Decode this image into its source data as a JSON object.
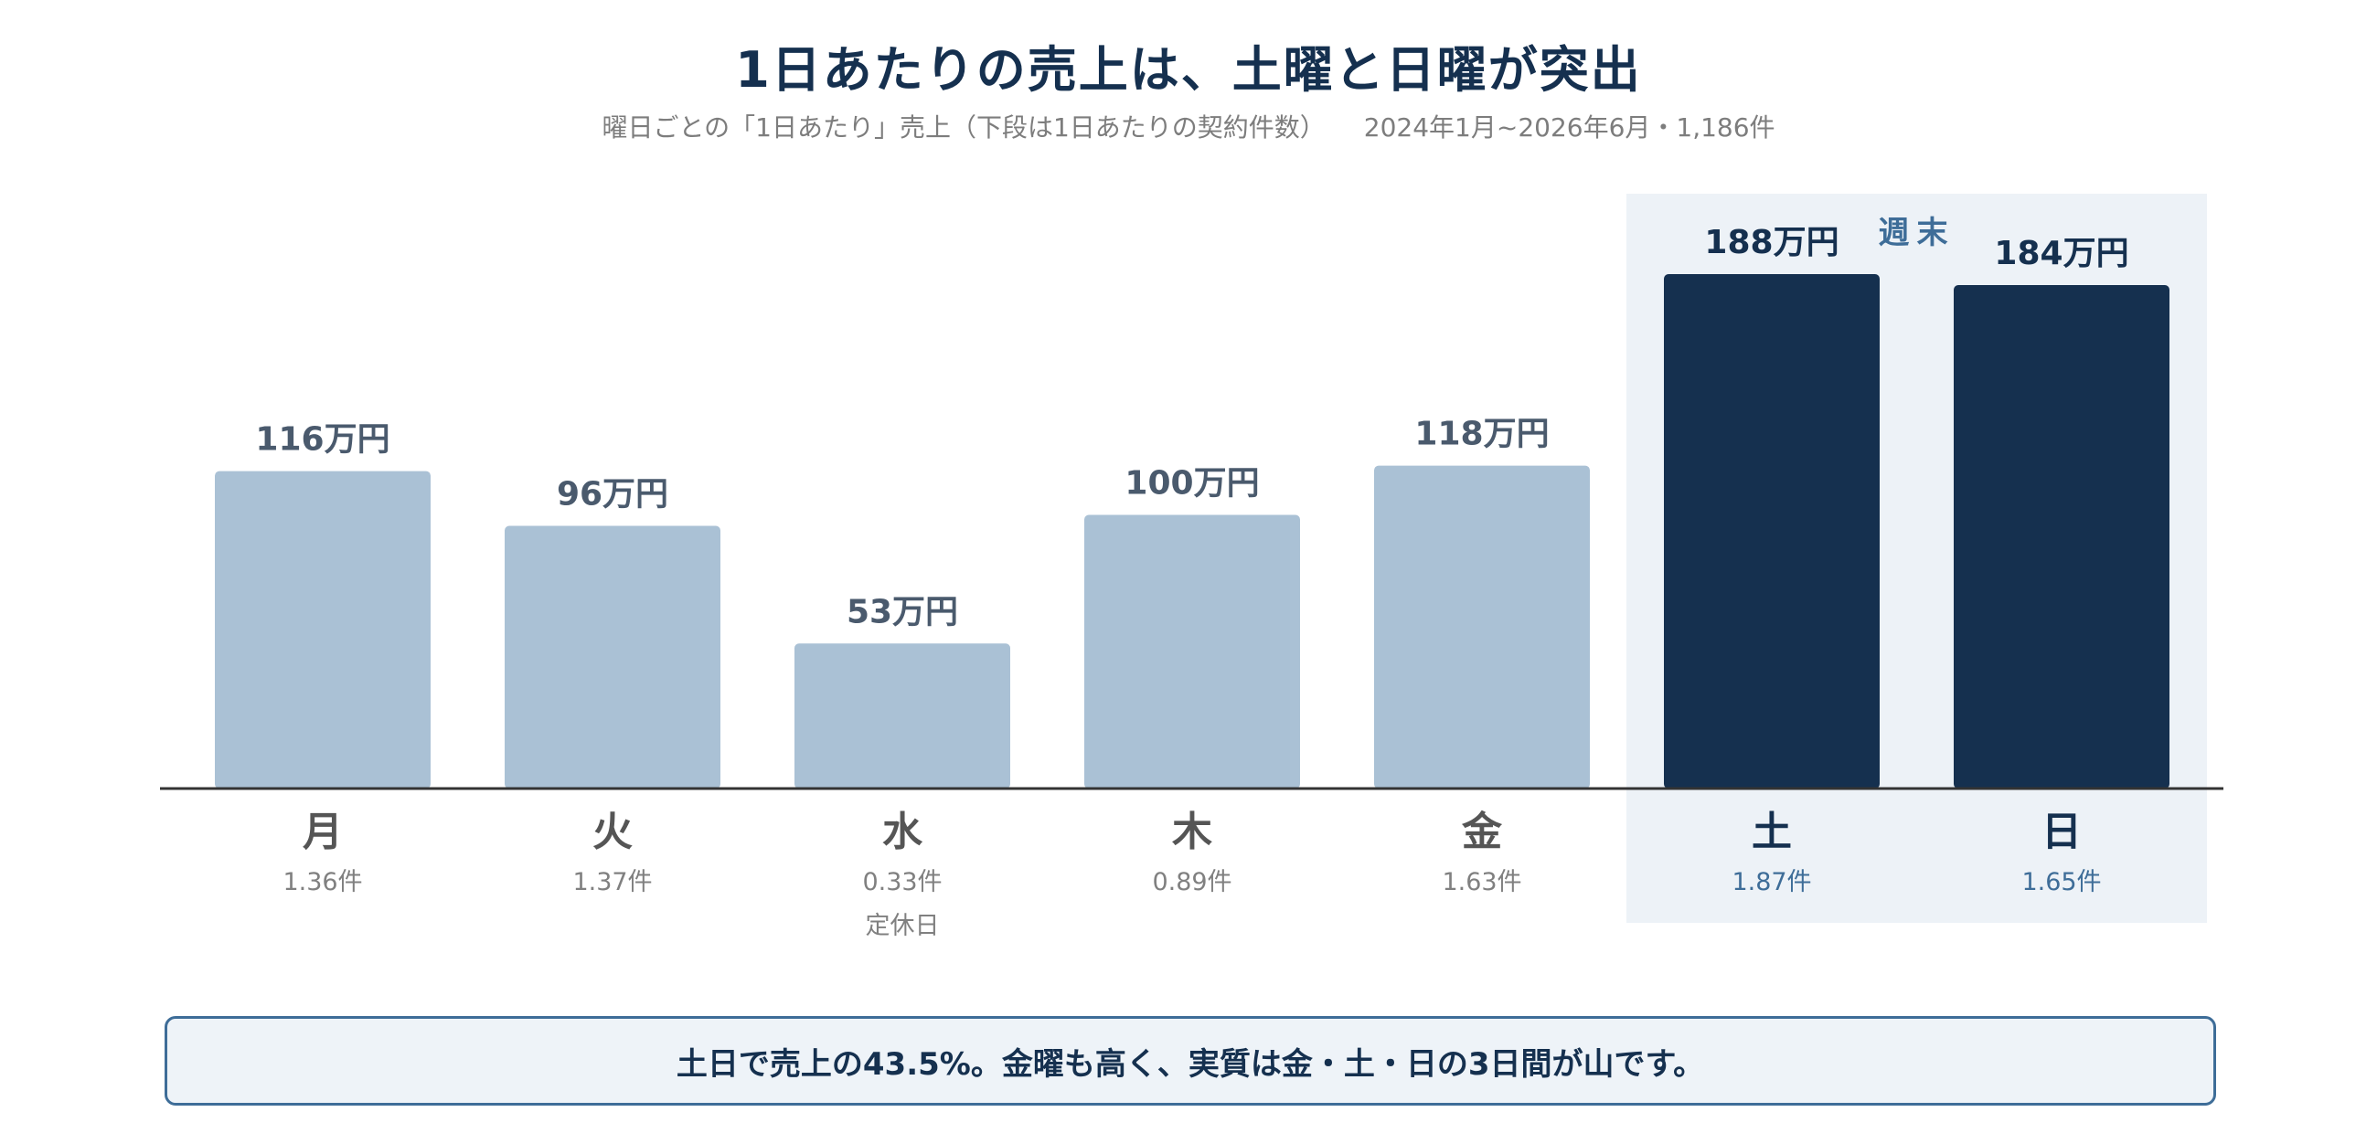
{
  "header": {
    "title": "1日あたりの売上は、土曜と日曜が突出",
    "subtitle_main": "曜日ごとの「1日あたり」売上（下段は1日あたりの契約件数）",
    "subtitle_period": "2024年1月~2026年6月・1,186件"
  },
  "chart_data": {
    "type": "bar",
    "categories": [
      "月",
      "火",
      "水",
      "木",
      "金",
      "土",
      "日"
    ],
    "values": [
      116,
      96,
      53,
      100,
      118,
      188,
      184
    ],
    "value_labels": [
      "116万円",
      "96万円",
      "53万円",
      "100万円",
      "118万円",
      "188万円",
      "184万円"
    ],
    "secondary_labels": [
      "1.36件",
      "1.37件",
      "0.33件",
      "0.89件",
      "1.63件",
      "1.87件",
      "1.65件"
    ],
    "notes": [
      "",
      "",
      "定休日",
      "",
      "",
      "",
      ""
    ],
    "highlight_categories": [
      "土",
      "日"
    ],
    "highlight_label": "週末",
    "ylim": [
      0,
      200
    ],
    "grid": false,
    "legend": "none",
    "colors": {
      "normal_bar": "#aac1d5",
      "highlight_bar": "#15304f",
      "highlight_bg": "#edf2f7",
      "normal_value_label": "#4a5a6d",
      "highlight_value_label": "#15304f",
      "normal_category": "#555555",
      "highlight_category": "#15304f",
      "normal_secondary": "#808080",
      "highlight_secondary": "#3e6d98"
    }
  },
  "callout": {
    "text": "土日で売上の43.5%。金曜も高く、実質は金・土・日の3日間が山です。"
  }
}
